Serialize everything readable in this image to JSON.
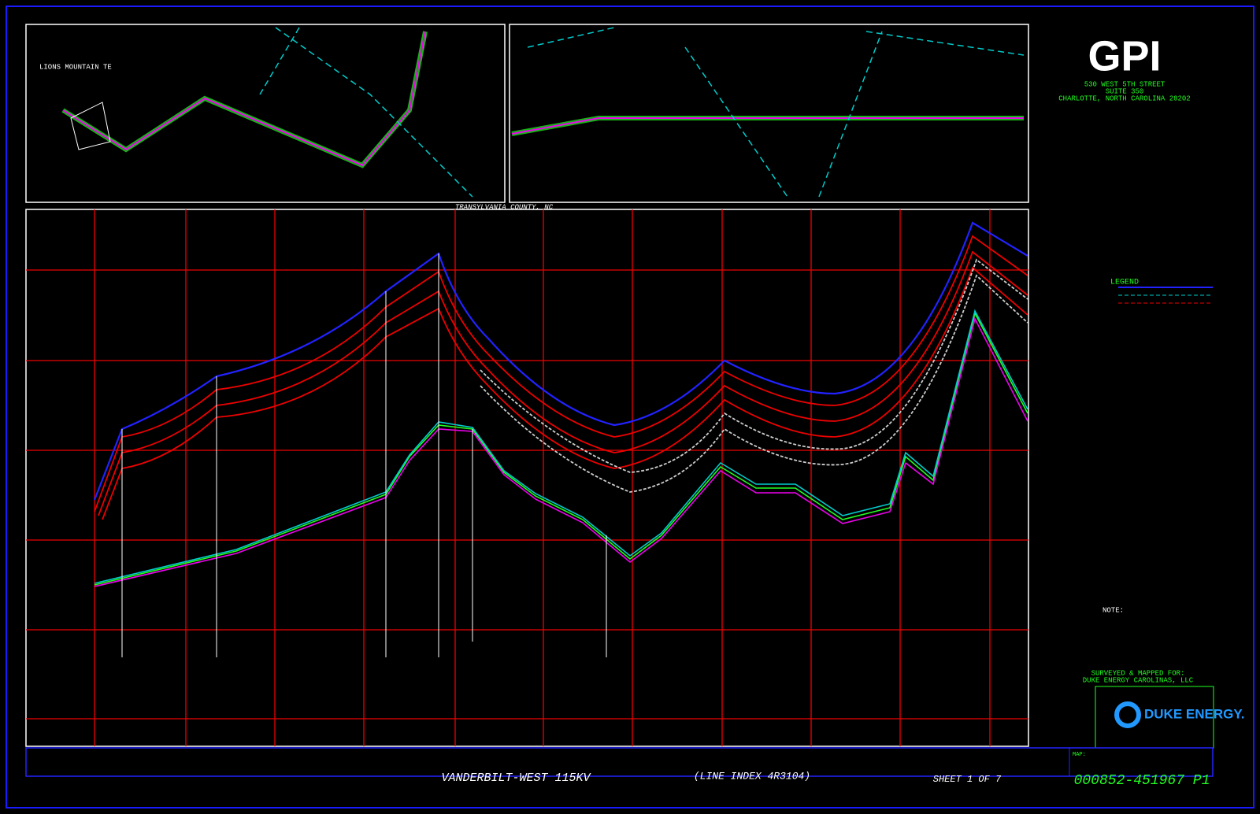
{
  "firm": {
    "name": "GPI",
    "address": [
      "530 WEST 5TH STREET",
      "SUITE 350",
      "CHARLOTTE, NORTH CAROLINA 28202"
    ]
  },
  "plan": {
    "county": "TRANSYLVANIA COUNTY, NC",
    "site": "LIONS MOUNTAIN TE"
  },
  "legend": {
    "title": "LEGEND"
  },
  "notes": {
    "title": "NOTE:",
    "surveyed": "SURVEYED & MAPPED FOR:",
    "client": "DUKE ENERGY CAROLINAS, LLC"
  },
  "logo": {
    "text": "DUKE ENERGY."
  },
  "title_block": {
    "project": "VANDERBILT-WEST 115KV",
    "line_index": "(LINE INDEX 4R3104)",
    "sheet": "SHEET 1 OF 7",
    "map_label": "MAP:",
    "map_number": "000852-451967 P1"
  }
}
